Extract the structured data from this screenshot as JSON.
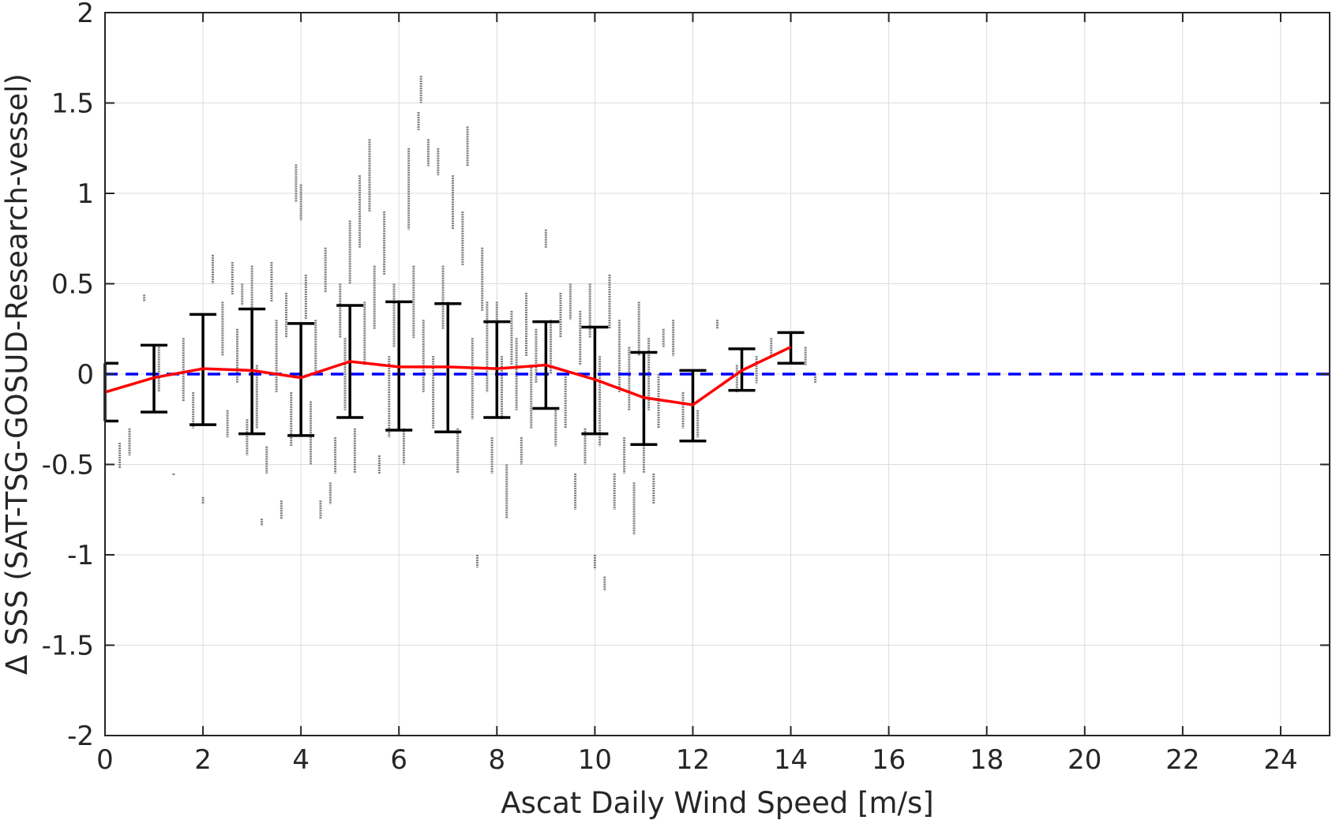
{
  "chart_data": {
    "type": "scatter",
    "xlabel": "Ascat Daily Wind Speed [m/s]",
    "ylabel": "Δ SSS (SAT-TSG-GOSUD-Research-vessel)",
    "xlim": [
      0,
      25
    ],
    "ylim": [
      -2,
      2
    ],
    "x_ticks": [
      0,
      2,
      4,
      6,
      8,
      10,
      12,
      14,
      16,
      18,
      20,
      22,
      24
    ],
    "y_ticks": [
      2,
      1.5,
      1,
      0.5,
      0,
      -0.5,
      -1,
      -1.5,
      -2
    ],
    "y_tick_labels": [
      "2",
      "1.5",
      "1",
      "0.5",
      "0",
      "-0.5",
      "-1",
      "-1.5",
      "-2"
    ],
    "grid": true,
    "colors": {
      "scatter": "#808080",
      "mean_line": "#ff0000",
      "error_bars": "#000000",
      "zero_line": "#0000ff",
      "axes": "#262626",
      "grid": "#dcdcdc"
    },
    "zero_line": {
      "y": 0,
      "style": "dashed"
    },
    "bins": [
      {
        "x": 0,
        "mean": -0.1,
        "low": -0.26,
        "high": 0.06
      },
      {
        "x": 1,
        "mean": -0.02,
        "low": -0.21,
        "high": 0.16
      },
      {
        "x": 2,
        "mean": 0.03,
        "low": -0.28,
        "high": 0.33
      },
      {
        "x": 3,
        "mean": 0.02,
        "low": -0.33,
        "high": 0.36
      },
      {
        "x": 4,
        "mean": -0.02,
        "low": -0.34,
        "high": 0.28
      },
      {
        "x": 5,
        "mean": 0.07,
        "low": -0.24,
        "high": 0.38
      },
      {
        "x": 6,
        "mean": 0.04,
        "low": -0.31,
        "high": 0.4
      },
      {
        "x": 7,
        "mean": 0.04,
        "low": -0.32,
        "high": 0.39
      },
      {
        "x": 8,
        "mean": 0.03,
        "low": -0.24,
        "high": 0.29
      },
      {
        "x": 9,
        "mean": 0.05,
        "low": -0.19,
        "high": 0.29
      },
      {
        "x": 10,
        "mean": -0.03,
        "low": -0.33,
        "high": 0.26
      },
      {
        "x": 11,
        "mean": -0.13,
        "low": -0.39,
        "high": 0.12
      },
      {
        "x": 12,
        "mean": -0.17,
        "low": -0.37,
        "high": 0.02
      },
      {
        "x": 13,
        "mean": 0.02,
        "low": -0.09,
        "high": 0.14
      },
      {
        "x": 14,
        "mean": 0.15,
        "low": 0.06,
        "high": 0.23
      }
    ],
    "scatter_streaks": [
      [
        0.3,
        -0.38,
        -0.52
      ],
      [
        0.5,
        -0.3,
        -0.45
      ],
      [
        0.8,
        0.44,
        0.4
      ],
      [
        1.1,
        0.15,
        -0.1
      ],
      [
        1.4,
        -0.55,
        -0.56
      ],
      [
        1.6,
        0.2,
        -0.15
      ],
      [
        1.8,
        -0.1,
        -0.3
      ],
      [
        2.0,
        -0.68,
        -0.72
      ],
      [
        2.2,
        0.66,
        0.5
      ],
      [
        2.4,
        0.4,
        0.1
      ],
      [
        2.5,
        -0.2,
        -0.35
      ],
      [
        2.6,
        0.62,
        0.44
      ],
      [
        2.7,
        0.25,
        -0.05
      ],
      [
        2.8,
        0.5,
        0.38
      ],
      [
        2.9,
        -0.25,
        -0.45
      ],
      [
        3.0,
        0.6,
        0.3
      ],
      [
        3.1,
        0.05,
        -0.3
      ],
      [
        3.2,
        -0.8,
        -0.84
      ],
      [
        3.3,
        -0.4,
        -0.55
      ],
      [
        3.4,
        0.62,
        0.4
      ],
      [
        3.5,
        0.3,
        -0.1
      ],
      [
        3.6,
        -0.7,
        -0.8
      ],
      [
        3.7,
        0.45,
        0.2
      ],
      [
        3.8,
        -0.1,
        -0.4
      ],
      [
        3.9,
        1.16,
        0.95
      ],
      [
        4.0,
        1.05,
        0.85
      ],
      [
        4.1,
        0.55,
        0.3
      ],
      [
        4.2,
        -0.15,
        -0.5
      ],
      [
        4.3,
        0.3,
        0.0
      ],
      [
        4.4,
        -0.7,
        -0.8
      ],
      [
        4.5,
        0.7,
        0.45
      ],
      [
        4.6,
        -0.6,
        -0.72
      ],
      [
        4.7,
        -0.35,
        -0.55
      ],
      [
        4.8,
        0.5,
        0.2
      ],
      [
        4.9,
        0.2,
        -0.2
      ],
      [
        5.0,
        0.85,
        0.5
      ],
      [
        5.1,
        -0.3,
        -0.55
      ],
      [
        5.2,
        1.1,
        0.7
      ],
      [
        5.3,
        0.4,
        0.05
      ],
      [
        5.4,
        1.3,
        0.9
      ],
      [
        5.5,
        0.6,
        0.25
      ],
      [
        5.6,
        -0.45,
        -0.55
      ],
      [
        5.7,
        0.9,
        0.55
      ],
      [
        5.8,
        0.1,
        -0.35
      ],
      [
        5.9,
        0.5,
        0.15
      ],
      [
        6.0,
        0.35,
        -0.2
      ],
      [
        6.1,
        -0.3,
        -0.5
      ],
      [
        6.2,
        1.25,
        0.8
      ],
      [
        6.3,
        0.6,
        0.2
      ],
      [
        6.4,
        1.45,
        1.35
      ],
      [
        6.45,
        1.65,
        1.5
      ],
      [
        6.5,
        0.3,
        -0.1
      ],
      [
        6.6,
        1.3,
        1.15
      ],
      [
        6.7,
        0.1,
        -0.3
      ],
      [
        6.8,
        1.25,
        1.1
      ],
      [
        6.9,
        0.6,
        0.25
      ],
      [
        7.0,
        0.4,
        -0.2
      ],
      [
        7.1,
        1.1,
        0.8
      ],
      [
        7.2,
        -0.3,
        -0.55
      ],
      [
        7.3,
        0.9,
        0.6
      ],
      [
        7.4,
        1.37,
        1.15
      ],
      [
        7.5,
        0.2,
        -0.25
      ],
      [
        7.6,
        -1.0,
        -1.07
      ],
      [
        7.7,
        0.7,
        0.35
      ],
      [
        7.8,
        0.4,
        -0.1
      ],
      [
        7.9,
        -0.35,
        -0.55
      ],
      [
        8.0,
        0.4,
        0.0
      ],
      [
        8.1,
        0.1,
        -0.25
      ],
      [
        8.2,
        -0.5,
        -0.8
      ],
      [
        8.3,
        0.35,
        0.05
      ],
      [
        8.4,
        0.2,
        -0.2
      ],
      [
        8.5,
        -0.35,
        -0.5
      ],
      [
        8.6,
        0.45,
        0.1
      ],
      [
        8.7,
        0.05,
        -0.3
      ],
      [
        8.8,
        0.25,
        -0.05
      ],
      [
        9.0,
        0.8,
        0.7
      ],
      [
        9.1,
        0.3,
        0.0
      ],
      [
        9.2,
        -0.2,
        -0.4
      ],
      [
        9.3,
        0.45,
        0.2
      ],
      [
        9.4,
        0.0,
        -0.3
      ],
      [
        9.5,
        0.5,
        0.3
      ],
      [
        9.6,
        -0.55,
        -0.75
      ],
      [
        9.7,
        0.35,
        0.05
      ],
      [
        9.8,
        -0.3,
        -0.5
      ],
      [
        9.9,
        0.5,
        0.2
      ],
      [
        10.0,
        -1.0,
        -1.08
      ],
      [
        10.1,
        0.1,
        -0.4
      ],
      [
        10.2,
        -1.12,
        -1.2
      ],
      [
        10.3,
        0.55,
        0.25
      ],
      [
        10.4,
        -0.55,
        -0.75
      ],
      [
        10.5,
        0.3,
        -0.1
      ],
      [
        10.6,
        -0.35,
        -0.55
      ],
      [
        10.7,
        0.15,
        -0.2
      ],
      [
        10.8,
        -0.6,
        -0.89
      ],
      [
        10.9,
        0.4,
        0.1
      ],
      [
        11.0,
        -0.3,
        -0.55
      ],
      [
        11.1,
        0.2,
        -0.2
      ],
      [
        11.2,
        -0.55,
        -0.72
      ],
      [
        11.3,
        0.0,
        -0.3
      ],
      [
        11.4,
        0.25,
        0.15
      ],
      [
        11.6,
        0.3,
        0.1
      ],
      [
        11.8,
        -0.1,
        -0.3
      ],
      [
        12.1,
        -0.2,
        -0.35
      ],
      [
        12.5,
        0.3,
        0.25
      ],
      [
        12.9,
        0.05,
        -0.1
      ],
      [
        13.3,
        0.1,
        -0.05
      ],
      [
        13.6,
        0.2,
        0.1
      ],
      [
        14.3,
        0.15,
        0.05
      ],
      [
        14.5,
        0.0,
        -0.05
      ]
    ]
  }
}
